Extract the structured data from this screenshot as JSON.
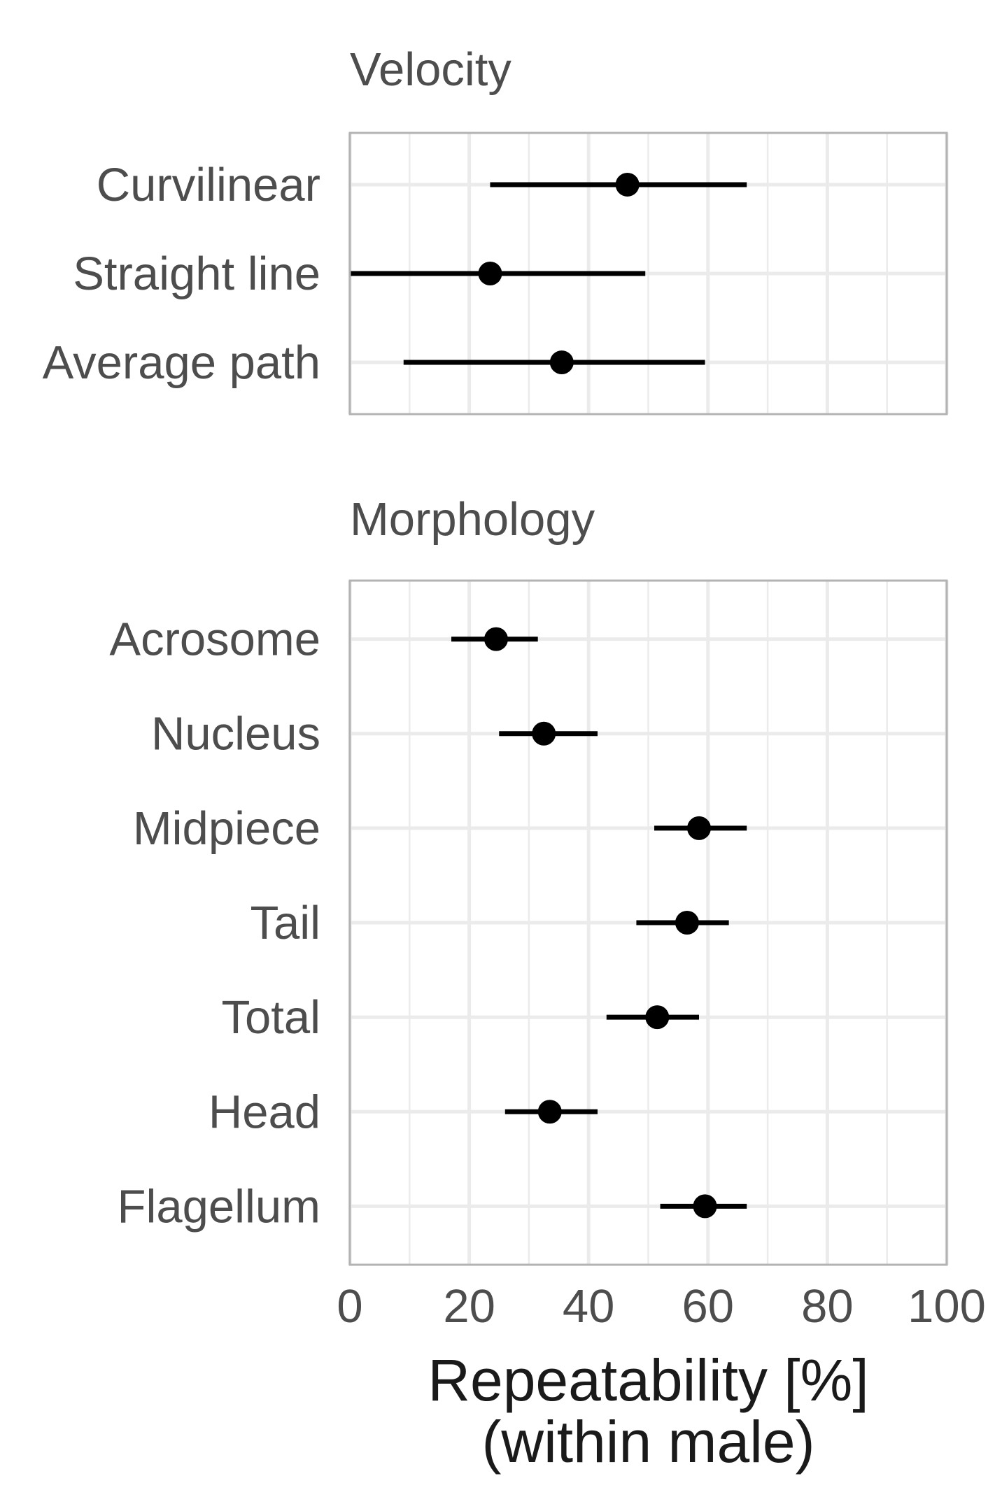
{
  "chart_data": {
    "type": "scatter",
    "xlabel": [
      "Repeatability [%]",
      "(within male)"
    ],
    "xlim": [
      0,
      100
    ],
    "xticks": [
      "0",
      "20",
      "40",
      "60",
      "80",
      "100"
    ],
    "xtick_values": [
      0,
      20,
      40,
      60,
      80,
      100
    ],
    "grid": true,
    "panels": [
      {
        "title": "Velocity",
        "categories": [
          "Curvilinear",
          "Straight line",
          "Average path"
        ],
        "estimates": [
          46.5,
          23.5,
          35.5
        ],
        "lower": [
          23.5,
          0,
          9
        ],
        "upper": [
          66.5,
          49.5,
          59.5
        ]
      },
      {
        "title": "Morphology",
        "categories": [
          "Acrosome",
          "Nucleus",
          "Midpiece",
          "Tail",
          "Total",
          "Head",
          "Flagellum"
        ],
        "estimates": [
          24.5,
          32.5,
          58.5,
          56.5,
          51.5,
          33.5,
          59.5
        ],
        "lower": [
          17,
          25,
          51,
          48,
          43,
          26,
          52
        ],
        "upper": [
          31.5,
          41.5,
          66.5,
          63.5,
          58.5,
          41.5,
          66.5
        ]
      }
    ]
  }
}
